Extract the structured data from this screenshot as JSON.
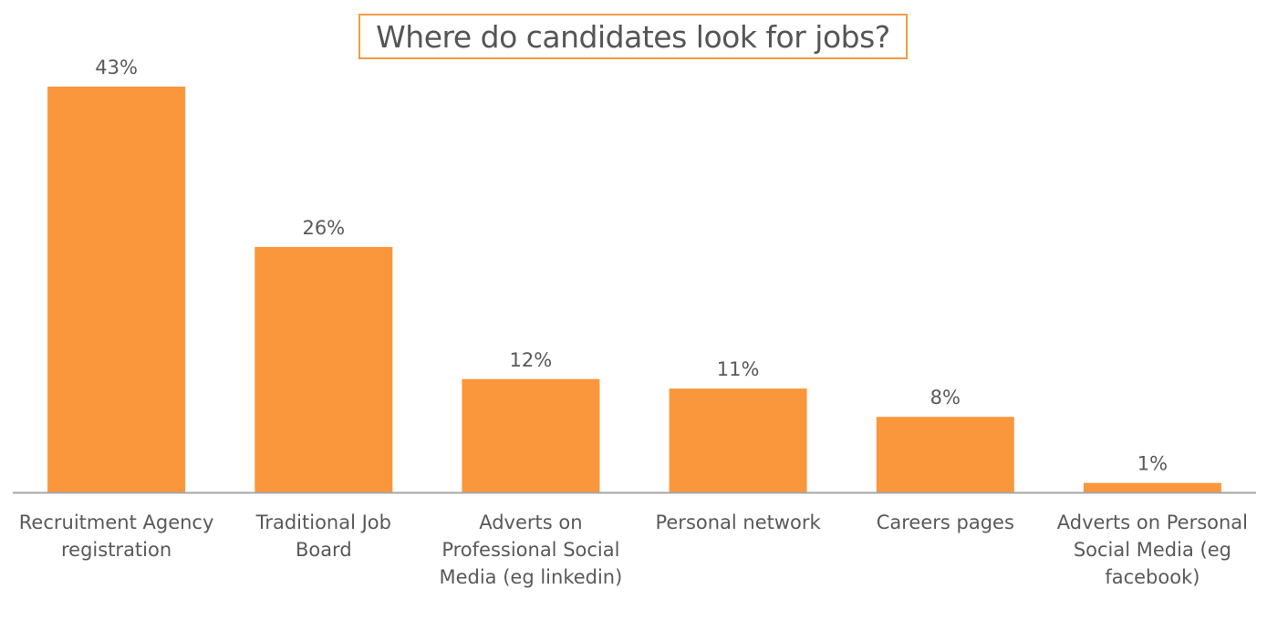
{
  "chart_data": {
    "type": "bar",
    "title": "Where do candidates look for jobs?",
    "categories": [
      [
        "Recruitment Agency",
        "registration"
      ],
      [
        "Traditional Job",
        "Board"
      ],
      [
        "Adverts on",
        "Professional Social",
        "Media (eg linkedin)"
      ],
      [
        "Personal network"
      ],
      [
        "Careers pages"
      ],
      [
        "Adverts on Personal",
        "Social Media (eg",
        "facebook)"
      ]
    ],
    "values": [
      43,
      26,
      12,
      11,
      8,
      1
    ],
    "value_labels": [
      "43%",
      "26%",
      "12%",
      "11%",
      "8%",
      "1%"
    ],
    "ylim": [
      0,
      45
    ],
    "grid": false,
    "legend": "none",
    "bar_color": "#fa963b",
    "axis_color": "#a6a6a6",
    "label_color": "#595959",
    "title_border_color": "#f59a45"
  }
}
